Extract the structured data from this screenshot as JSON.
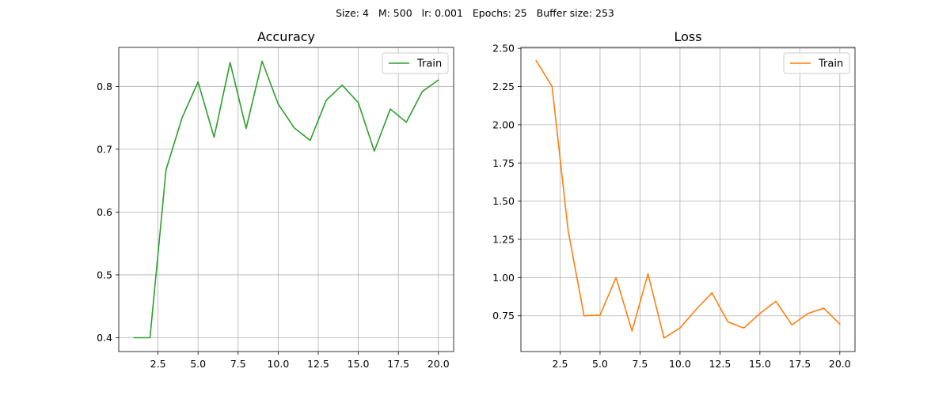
{
  "figure_title": "Size: 4   M: 500   lr: 0.001   Epochs: 25   Buffer size: 253",
  "chart_data": [
    {
      "type": "line",
      "title": "Accuracy",
      "xlabel": "",
      "ylabel": "",
      "grid": true,
      "legend": "upper right",
      "x": [
        1,
        2,
        3,
        4,
        5,
        6,
        7,
        8,
        9,
        10,
        11,
        12,
        13,
        14,
        15,
        16,
        17,
        18,
        19,
        20
      ],
      "xlim": [
        0.05,
        20.95
      ],
      "ylim": [
        0.378,
        0.862
      ],
      "xticks": [
        2.5,
        5.0,
        7.5,
        10.0,
        12.5,
        15.0,
        17.5,
        20.0
      ],
      "xtick_labels": [
        "2.5",
        "5.0",
        "7.5",
        "10.0",
        "12.5",
        "15.0",
        "17.5",
        "20.0"
      ],
      "yticks": [
        0.4,
        0.5,
        0.6,
        0.7,
        0.8
      ],
      "ytick_labels": [
        "0.4",
        "0.5",
        "0.6",
        "0.7",
        "0.8"
      ],
      "series": [
        {
          "name": "Train",
          "color": "#2ca02c",
          "values": [
            0.4,
            0.4,
            0.667,
            0.75,
            0.807,
            0.719,
            0.838,
            0.733,
            0.84,
            0.772,
            0.734,
            0.714,
            0.778,
            0.802,
            0.774,
            0.697,
            0.764,
            0.743,
            0.792,
            0.81
          ]
        }
      ]
    },
    {
      "type": "line",
      "title": "Loss",
      "xlabel": "",
      "ylabel": "",
      "grid": true,
      "legend": "upper right",
      "x": [
        1,
        2,
        3,
        4,
        5,
        6,
        7,
        8,
        9,
        10,
        11,
        12,
        13,
        14,
        15,
        16,
        17,
        18,
        19,
        20
      ],
      "xlim": [
        0.05,
        20.95
      ],
      "ylim": [
        0.516,
        2.506
      ],
      "xticks": [
        2.5,
        5.0,
        7.5,
        10.0,
        12.5,
        15.0,
        17.5,
        20.0
      ],
      "xtick_labels": [
        "2.5",
        "5.0",
        "7.5",
        "10.0",
        "12.5",
        "15.0",
        "17.5",
        "20.0"
      ],
      "yticks": [
        0.75,
        1.0,
        1.25,
        1.5,
        1.75,
        2.0,
        2.25,
        2.5
      ],
      "ytick_labels": [
        "0.75",
        "1.00",
        "1.25",
        "1.50",
        "1.75",
        "2.00",
        "2.25",
        "2.50"
      ],
      "series": [
        {
          "name": "Train",
          "color": "#ff7f0e",
          "values": [
            2.42,
            2.25,
            1.31,
            0.75,
            0.755,
            1.0,
            0.65,
            1.025,
            0.605,
            0.67,
            0.79,
            0.9,
            0.71,
            0.67,
            0.765,
            0.845,
            0.69,
            0.765,
            0.8,
            0.695
          ]
        }
      ]
    }
  ]
}
